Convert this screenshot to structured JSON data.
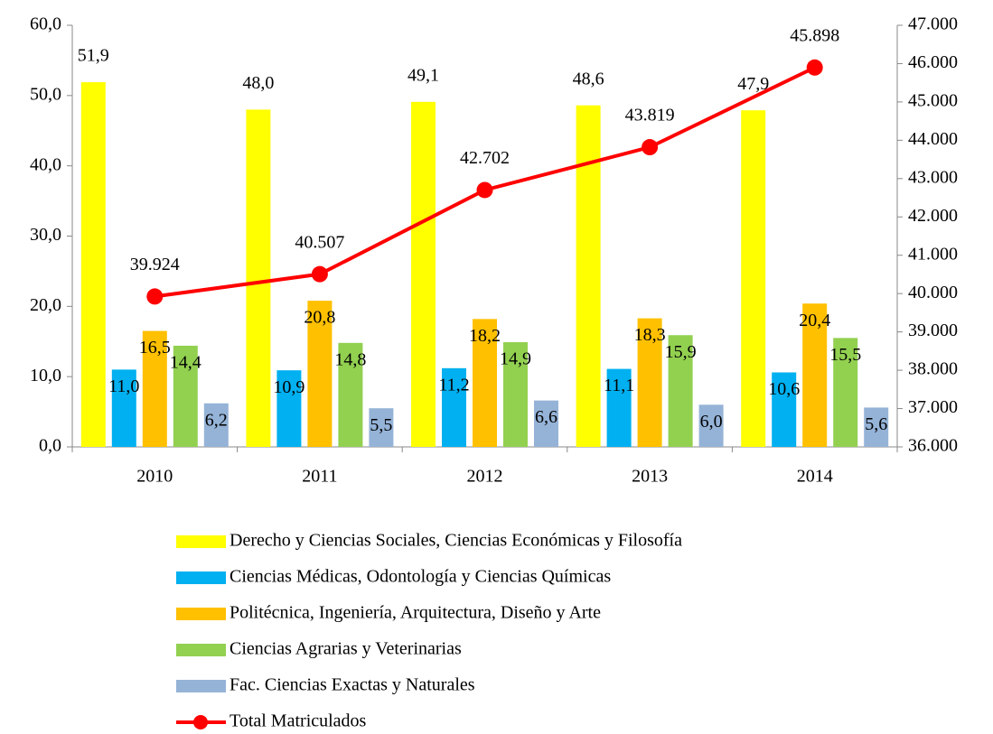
{
  "chart_data": {
    "type": "bar",
    "categories": [
      "2010",
      "2011",
      "2012",
      "2013",
      "2014"
    ],
    "ylim": [
      0,
      60
    ],
    "yticks": [
      {
        "value": 0,
        "label": "0,0"
      },
      {
        "value": 10,
        "label": "10,0"
      },
      {
        "value": 20,
        "label": "20,0"
      },
      {
        "value": 30,
        "label": "30,0"
      },
      {
        "value": 40,
        "label": "40,0"
      },
      {
        "value": 50,
        "label": "50,0"
      },
      {
        "value": 60,
        "label": "60,0"
      }
    ],
    "y2lim": [
      36000,
      47000
    ],
    "y2ticks": [
      {
        "value": 36000,
        "label": "36.000"
      },
      {
        "value": 37000,
        "label": "37.000"
      },
      {
        "value": 38000,
        "label": "38.000"
      },
      {
        "value": 39000,
        "label": "39.000"
      },
      {
        "value": 40000,
        "label": "40.000"
      },
      {
        "value": 41000,
        "label": "41.000"
      },
      {
        "value": 42000,
        "label": "42.000"
      },
      {
        "value": 43000,
        "label": "43.000"
      },
      {
        "value": 44000,
        "label": "44.000"
      },
      {
        "value": 45000,
        "label": "45.000"
      },
      {
        "value": 46000,
        "label": "46.000"
      },
      {
        "value": 47000,
        "label": "47.000"
      }
    ],
    "series": [
      {
        "name": "Derecho y Ciencias Sociales, Ciencias Económicas y Filosofía",
        "color": "#ffff00",
        "values": [
          51.9,
          48.0,
          49.1,
          48.6,
          47.9
        ],
        "value_labels": [
          "51,9",
          "48,0",
          "49,1",
          "48,6",
          "47,9"
        ]
      },
      {
        "name": "Ciencias Médicas, Odontología y Ciencias Químicas",
        "color": "#00b0f0",
        "values": [
          11.0,
          10.9,
          11.2,
          11.1,
          10.6
        ],
        "value_labels": [
          "11,0",
          "10,9",
          "11,2",
          "11,1",
          "10,6"
        ]
      },
      {
        "name": "Politécnica, Ingeniería, Arquitectura, Diseño y Arte",
        "color": "#ffc000",
        "values": [
          16.5,
          20.8,
          18.2,
          18.3,
          20.4
        ],
        "value_labels": [
          "16,5",
          "20,8",
          "18,2",
          "18,3",
          "20,4"
        ]
      },
      {
        "name": "Ciencias Agrarias y Veterinarias",
        "color": "#92d050",
        "values": [
          14.4,
          14.8,
          14.9,
          15.9,
          15.5
        ],
        "value_labels": [
          "14,4",
          "14,8",
          "14,9",
          "15,9",
          "15,5"
        ]
      },
      {
        "name": "Fac. Ciencias Exactas y Naturales",
        "color": "#95b3d7",
        "values": [
          6.2,
          5.5,
          6.6,
          6.0,
          5.6
        ],
        "value_labels": [
          "6,2",
          "5,5",
          "6,6",
          "6,0",
          "5,6"
        ]
      },
      {
        "name": "Total Matriculados",
        "type": "line",
        "axis": "y2",
        "color": "#ff0000",
        "values": [
          39924,
          40507,
          42702,
          43819,
          45898
        ],
        "value_labels": [
          "39.924",
          "40.507",
          "42.702",
          "43.819",
          "45.898"
        ]
      }
    ]
  }
}
